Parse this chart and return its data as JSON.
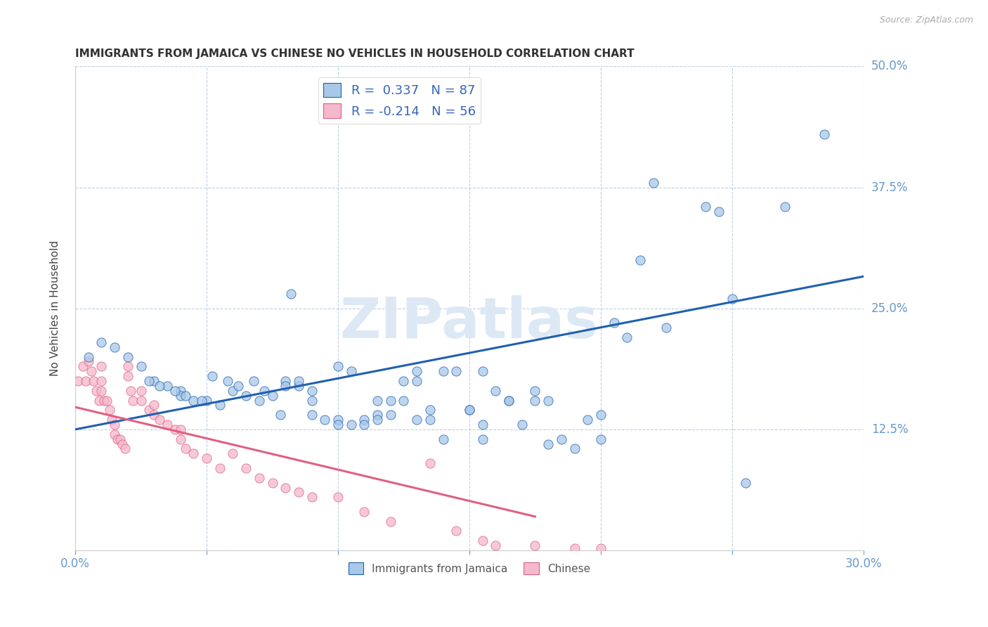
{
  "title": "IMMIGRANTS FROM JAMAICA VS CHINESE NO VEHICLES IN HOUSEHOLD CORRELATION CHART",
  "source": "Source: ZipAtlas.com",
  "ylabel": "No Vehicles in Household",
  "x_min": 0.0,
  "x_max": 0.3,
  "y_min": 0.0,
  "y_max": 0.5,
  "x_ticks": [
    0.0,
    0.05,
    0.1,
    0.15,
    0.2,
    0.25,
    0.3
  ],
  "y_ticks": [
    0.0,
    0.125,
    0.25,
    0.375,
    0.5
  ],
  "legend_label1": "Immigrants from Jamaica",
  "legend_label2": "Chinese",
  "legend_R1": "R =  0.337",
  "legend_N1": "N = 87",
  "legend_R2": "R = -0.214",
  "legend_N2": "N = 56",
  "color_blue": "#a8c8e8",
  "color_pink": "#f5b8cc",
  "line_blue": "#2060b0",
  "line_pink": "#e06080",
  "watermark": "ZIPatlas",
  "blue_scatter_x": [
    0.03,
    0.035,
    0.04,
    0.04,
    0.045,
    0.05,
    0.055,
    0.06,
    0.065,
    0.07,
    0.075,
    0.08,
    0.08,
    0.085,
    0.085,
    0.09,
    0.09,
    0.09,
    0.095,
    0.1,
    0.1,
    0.1,
    0.105,
    0.105,
    0.11,
    0.11,
    0.115,
    0.115,
    0.115,
    0.12,
    0.12,
    0.125,
    0.125,
    0.13,
    0.13,
    0.13,
    0.135,
    0.135,
    0.14,
    0.14,
    0.145,
    0.15,
    0.15,
    0.155,
    0.155,
    0.155,
    0.16,
    0.165,
    0.165,
    0.17,
    0.175,
    0.175,
    0.18,
    0.18,
    0.185,
    0.19,
    0.195,
    0.2,
    0.2,
    0.205,
    0.21,
    0.215,
    0.22,
    0.225,
    0.24,
    0.245,
    0.25,
    0.255,
    0.27,
    0.285,
    0.005,
    0.01,
    0.015,
    0.02,
    0.025,
    0.028,
    0.032,
    0.038,
    0.042,
    0.048,
    0.052,
    0.058,
    0.062,
    0.068,
    0.072,
    0.078,
    0.082
  ],
  "blue_scatter_y": [
    0.175,
    0.17,
    0.165,
    0.16,
    0.155,
    0.155,
    0.15,
    0.165,
    0.16,
    0.155,
    0.16,
    0.175,
    0.17,
    0.17,
    0.175,
    0.165,
    0.155,
    0.14,
    0.135,
    0.135,
    0.13,
    0.19,
    0.13,
    0.185,
    0.135,
    0.13,
    0.155,
    0.14,
    0.135,
    0.155,
    0.14,
    0.155,
    0.175,
    0.175,
    0.135,
    0.185,
    0.145,
    0.135,
    0.185,
    0.115,
    0.185,
    0.145,
    0.145,
    0.115,
    0.185,
    0.13,
    0.165,
    0.155,
    0.155,
    0.13,
    0.165,
    0.155,
    0.155,
    0.11,
    0.115,
    0.105,
    0.135,
    0.14,
    0.115,
    0.235,
    0.22,
    0.3,
    0.38,
    0.23,
    0.355,
    0.35,
    0.26,
    0.07,
    0.355,
    0.43,
    0.2,
    0.215,
    0.21,
    0.2,
    0.19,
    0.175,
    0.17,
    0.165,
    0.16,
    0.155,
    0.18,
    0.175,
    0.17,
    0.175,
    0.165,
    0.14,
    0.265
  ],
  "pink_scatter_x": [
    0.001,
    0.003,
    0.004,
    0.005,
    0.006,
    0.007,
    0.008,
    0.009,
    0.01,
    0.01,
    0.01,
    0.011,
    0.012,
    0.013,
    0.014,
    0.015,
    0.015,
    0.016,
    0.017,
    0.018,
    0.019,
    0.02,
    0.02,
    0.021,
    0.022,
    0.025,
    0.025,
    0.028,
    0.03,
    0.03,
    0.032,
    0.035,
    0.038,
    0.04,
    0.04,
    0.042,
    0.045,
    0.05,
    0.055,
    0.06,
    0.065,
    0.07,
    0.075,
    0.08,
    0.085,
    0.09,
    0.1,
    0.11,
    0.12,
    0.135,
    0.145,
    0.155,
    0.16,
    0.175,
    0.19,
    0.2
  ],
  "pink_scatter_y": [
    0.175,
    0.19,
    0.175,
    0.195,
    0.185,
    0.175,
    0.165,
    0.155,
    0.19,
    0.175,
    0.165,
    0.155,
    0.155,
    0.145,
    0.135,
    0.13,
    0.12,
    0.115,
    0.115,
    0.11,
    0.105,
    0.19,
    0.18,
    0.165,
    0.155,
    0.165,
    0.155,
    0.145,
    0.15,
    0.14,
    0.135,
    0.13,
    0.125,
    0.125,
    0.115,
    0.105,
    0.1,
    0.095,
    0.085,
    0.1,
    0.085,
    0.075,
    0.07,
    0.065,
    0.06,
    0.055,
    0.055,
    0.04,
    0.03,
    0.09,
    0.02,
    0.01,
    0.005,
    0.005,
    0.002,
    0.002
  ],
  "blue_line_x": [
    0.0,
    0.3
  ],
  "blue_line_y": [
    0.125,
    0.283
  ],
  "pink_line_x": [
    0.0,
    0.175
  ],
  "pink_line_y": [
    0.148,
    0.035
  ],
  "figsize": [
    14.06,
    8.92
  ],
  "dpi": 100
}
